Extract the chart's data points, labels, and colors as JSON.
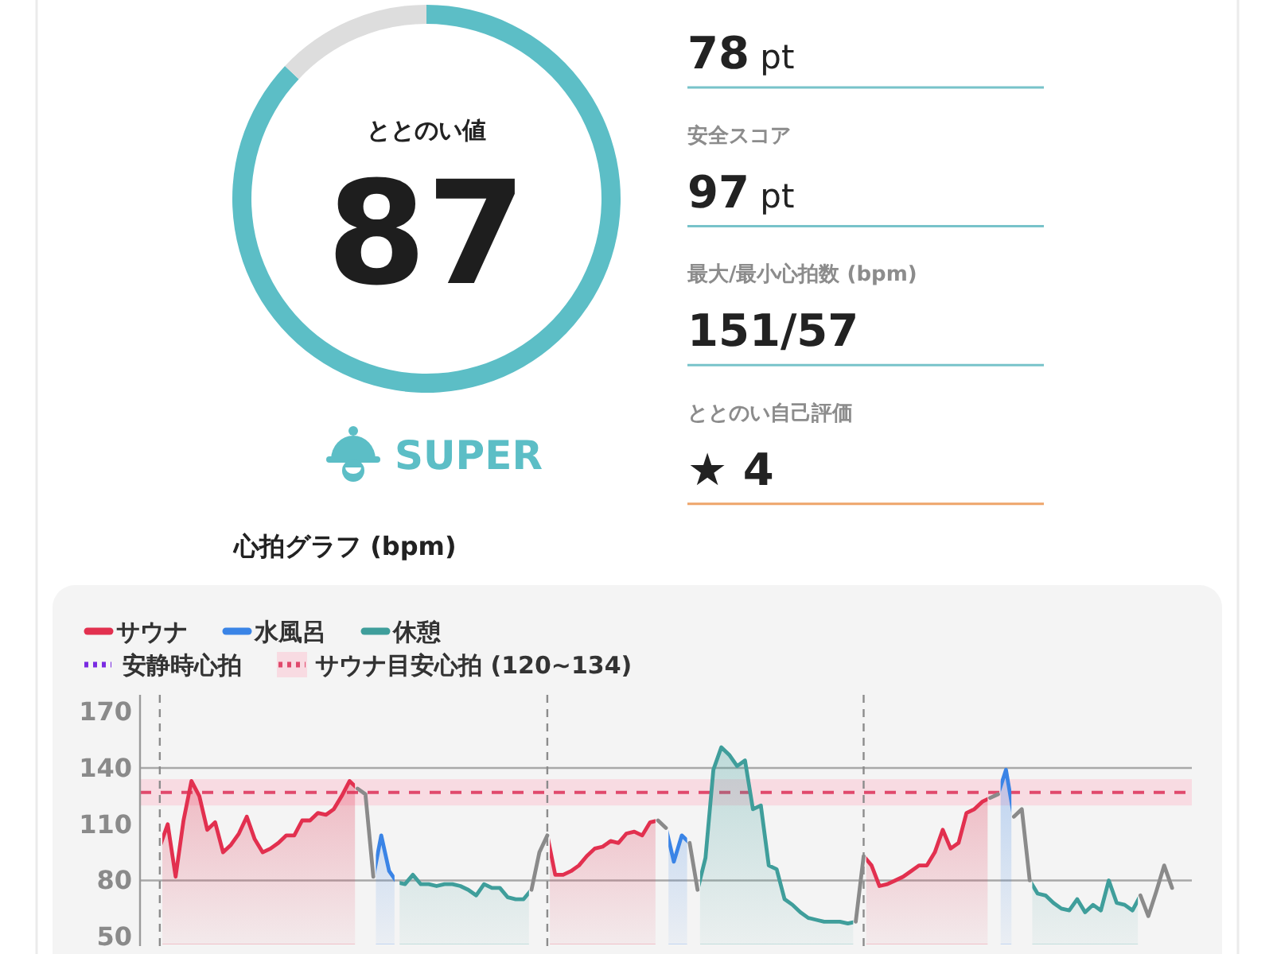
{
  "chart_data": [
    {
      "type": "donut",
      "title": "ととのい値",
      "categories": [
        null,
        null
      ],
      "values": [
        87,
        13
      ],
      "colors": [
        "#5cbec6",
        "#dddddd"
      ],
      "value_labels": [
        "87",
        null
      ],
      "annotations": [
        "SUPER"
      ]
    },
    {
      "type": "other",
      "annotations": [
        "78 pt",
        "安全スコア",
        "97 pt",
        "最大/最小心拍数 (bpm)",
        "151/57",
        "ととのい自己評価",
        "★ 4"
      ]
    },
    {
      "type": "line",
      "title": "心拍グラフ (bpm)",
      "categories": [
        null,
        null,
        null,
        null,
        null,
        null,
        null,
        null,
        null,
        null,
        null,
        null,
        null,
        null,
        null,
        null,
        null,
        null,
        null,
        null,
        null,
        null,
        null,
        null,
        null,
        null,
        null,
        null,
        null,
        null,
        null,
        null,
        null,
        null,
        null,
        null,
        null,
        null,
        null,
        null,
        null,
        null,
        null,
        null,
        null,
        null,
        null,
        null,
        null,
        null,
        null,
        null,
        null,
        null,
        null,
        null,
        null,
        null,
        null,
        null,
        null,
        null,
        null,
        null,
        null,
        null,
        null,
        null,
        null,
        null,
        null,
        null,
        null,
        null,
        null,
        null,
        null,
        null,
        null,
        null,
        null,
        null,
        null,
        null,
        null,
        null,
        null,
        null,
        null,
        null,
        null,
        null,
        null,
        null,
        null,
        null,
        null,
        null,
        null,
        null,
        null,
        null,
        null,
        null,
        null,
        null,
        null,
        null,
        null,
        null,
        null,
        null,
        null,
        null,
        null,
        null,
        null,
        null,
        null,
        null,
        null,
        null,
        null,
        null,
        null,
        null,
        null,
        null,
        null,
        null,
        null,
        null,
        null
      ],
      "series": [
        {
          "name": "サウナ",
          "type": "area",
          "color": "#e2304f",
          "values": [
            null,
            null,
            98,
            110,
            82,
            112,
            133,
            125,
            107,
            111,
            95,
            99,
            105,
            114,
            102,
            95,
            97,
            100,
            104,
            104,
            112,
            112,
            116,
            115,
            118,
            125,
            133,
            129,
            null,
            null,
            null,
            null,
            null,
            null,
            null,
            null,
            null,
            null,
            null,
            null,
            null,
            null,
            null,
            null,
            null,
            null,
            null,
            null,
            null,
            null,
            null,
            104,
            83,
            83,
            85,
            88,
            93,
            97,
            98,
            101,
            100,
            105,
            106,
            104,
            111,
            112,
            null,
            null,
            null,
            null,
            null,
            null,
            null,
            null,
            null,
            null,
            null,
            null,
            null,
            null,
            null,
            null,
            null,
            null,
            null,
            null,
            null,
            null,
            null,
            null,
            null,
            93,
            88,
            77,
            78,
            80,
            82,
            85,
            88,
            88,
            95,
            107,
            97,
            100,
            116,
            118,
            122,
            124,
            null,
            null,
            null,
            null,
            null,
            null,
            null,
            null,
            null,
            null,
            null,
            null,
            null,
            null,
            null,
            null,
            null,
            null,
            null,
            null,
            null,
            null,
            null,
            null,
            null
          ]
        },
        {
          "name": "水風呂",
          "type": "area",
          "color": "#3a84e6",
          "values": [
            null,
            null,
            null,
            null,
            null,
            null,
            null,
            null,
            null,
            null,
            null,
            null,
            null,
            null,
            null,
            null,
            null,
            null,
            null,
            null,
            null,
            null,
            null,
            null,
            null,
            null,
            null,
            null,
            null,
            82,
            104,
            85,
            79,
            null,
            null,
            null,
            null,
            null,
            null,
            null,
            null,
            null,
            null,
            null,
            null,
            null,
            null,
            null,
            null,
            null,
            null,
            null,
            null,
            null,
            null,
            null,
            null,
            null,
            null,
            null,
            null,
            null,
            null,
            null,
            null,
            null,
            108,
            90,
            104,
            100,
            null,
            null,
            null,
            null,
            null,
            null,
            null,
            null,
            null,
            null,
            null,
            null,
            null,
            null,
            null,
            null,
            null,
            null,
            null,
            null,
            null,
            null,
            null,
            null,
            null,
            null,
            null,
            null,
            null,
            null,
            null,
            null,
            null,
            null,
            null,
            null,
            null,
            null,
            126,
            139,
            114,
            null,
            null,
            null,
            null,
            null,
            null,
            null,
            null,
            null,
            null,
            null,
            null,
            null,
            null,
            null,
            null,
            null,
            null,
            null,
            null,
            null,
            null
          ]
        },
        {
          "name": "休憩",
          "type": "area",
          "color": "#3f9e9b",
          "values": [
            null,
            null,
            null,
            null,
            null,
            null,
            null,
            null,
            null,
            null,
            null,
            null,
            null,
            null,
            null,
            null,
            null,
            null,
            null,
            null,
            null,
            null,
            null,
            null,
            null,
            null,
            null,
            null,
            null,
            null,
            null,
            null,
            79,
            78,
            83,
            78,
            78,
            77,
            78,
            78,
            77,
            75,
            72,
            78,
            76,
            76,
            71,
            70,
            70,
            75,
            null,
            null,
            null,
            null,
            null,
            null,
            null,
            null,
            null,
            null,
            null,
            null,
            null,
            null,
            null,
            null,
            null,
            null,
            null,
            null,
            75,
            92,
            139,
            151,
            147,
            141,
            144,
            118,
            120,
            88,
            86,
            70,
            67,
            63,
            60,
            59,
            58,
            58,
            58,
            57,
            58,
            null,
            null,
            null,
            null,
            null,
            null,
            null,
            null,
            null,
            null,
            null,
            null,
            null,
            null,
            null,
            null,
            null,
            null,
            null,
            null,
            null,
            80,
            73,
            72,
            68,
            65,
            64,
            70,
            63,
            67,
            64,
            80,
            68,
            67,
            64,
            72,
            null,
            null,
            null,
            null,
            null,
            null
          ]
        },
        {
          "type": "line",
          "color": "#8a8a8a",
          "values": [
            null,
            null,
            null,
            null,
            null,
            null,
            null,
            null,
            null,
            null,
            null,
            null,
            null,
            null,
            null,
            null,
            null,
            null,
            null,
            null,
            null,
            null,
            null,
            null,
            null,
            null,
            null,
            129,
            126,
            82,
            null,
            null,
            null,
            null,
            null,
            null,
            null,
            null,
            null,
            null,
            null,
            null,
            null,
            null,
            null,
            null,
            null,
            null,
            null,
            75,
            95,
            104,
            null,
            null,
            null,
            null,
            null,
            null,
            null,
            null,
            null,
            null,
            null,
            null,
            null,
            112,
            108,
            null,
            null,
            100,
            75,
            null,
            null,
            null,
            null,
            null,
            null,
            null,
            null,
            null,
            null,
            null,
            null,
            null,
            null,
            null,
            null,
            null,
            null,
            null,
            58,
            93,
            null,
            null,
            null,
            null,
            null,
            null,
            null,
            null,
            null,
            null,
            null,
            null,
            null,
            null,
            null,
            124,
            126,
            null,
            114,
            118,
            80,
            null,
            null,
            null,
            null,
            null,
            null,
            null,
            null,
            null,
            null,
            null,
            null,
            null,
            72,
            61,
            74,
            88,
            76,
            null,
            null
          ]
        }
      ],
      "ylim": [
        45,
        179
      ],
      "yticks": [
        50,
        80,
        110,
        140,
        170
      ],
      "tick_labels": "y",
      "legend": "top left",
      "ref_lines": [
        {
          "axis": "y",
          "value": 140,
          "color": "#a8a8a8",
          "line_style": "solid"
        },
        {
          "axis": "y",
          "value": 80,
          "color": "#a8a8a8",
          "line_style": "solid"
        },
        {
          "axis": "y",
          "value": 127,
          "color": "#e0496c",
          "line_style": "dashed"
        },
        {
          "axis": "y",
          "value": null,
          "label": "安静時心拍",
          "color": "#7a2be2",
          "line_style": "dotted"
        }
      ],
      "bands": [
        {
          "axis": "y",
          "from": 120,
          "to": 134,
          "label": "サウナ目安心拍 (120~134)",
          "color": "#f8dbe2"
        }
      ]
    }
  ]
}
